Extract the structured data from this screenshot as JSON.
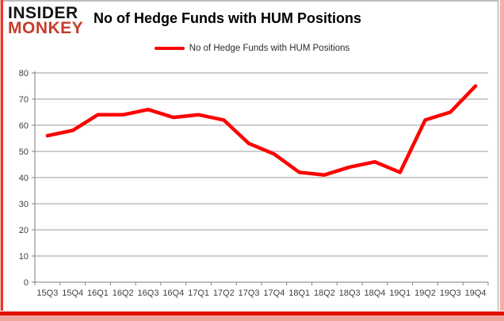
{
  "brand": {
    "line1": "INSIDER",
    "line2": "MONKEY"
  },
  "header": {
    "title": "No of Hedge Funds with HUM Positions"
  },
  "legend": {
    "label": "No of Hedge Funds with HUM Positions"
  },
  "chart_data": {
    "type": "line",
    "title": "No of Hedge Funds with HUM Positions",
    "categories": [
      "15Q3",
      "15Q4",
      "16Q1",
      "16Q2",
      "16Q3",
      "16Q4",
      "17Q1",
      "17Q2",
      "17Q3",
      "17Q4",
      "18Q1",
      "18Q2",
      "18Q3",
      "18Q4",
      "19Q1",
      "19Q2",
      "19Q3",
      "19Q4"
    ],
    "series": [
      {
        "name": "No of Hedge Funds with HUM Positions",
        "color": "#fe0000",
        "values": [
          56,
          58,
          64,
          64,
          66,
          63,
          64,
          62,
          53,
          49,
          42,
          41,
          44,
          46,
          42,
          62,
          65,
          75
        ]
      }
    ],
    "xlabel": "",
    "ylabel": "",
    "ylim": [
      0,
      80
    ],
    "ytick_step": 10,
    "grid": "horizontal",
    "legend_position": "top"
  },
  "colors": {
    "line": "#fe0000",
    "grid": "#9e9e9e",
    "axis": "#7f7f7f",
    "tick_label": "#3f3f3f",
    "brand_black": "#131313",
    "brand_red": "#c43d2c",
    "border_red": "#e6392b",
    "border_pink": "#f3b0a8"
  }
}
